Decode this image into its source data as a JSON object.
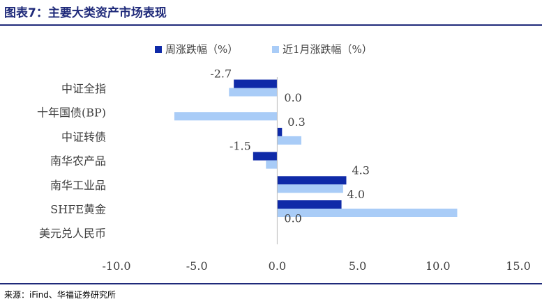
{
  "header": {
    "title": "图表7：主要大类资产市场表现"
  },
  "footer": {
    "source": "来源：iFind、华福证券研究所"
  },
  "colors": {
    "title": "#1f2a7a",
    "rule": "#1f2a7a",
    "weekly": "#0f2aa8",
    "recent_month": "#a9ccf7",
    "text": "#404040"
  },
  "chart_data": {
    "type": "bar",
    "orientation": "horizontal",
    "categories": [
      "中证全指",
      "十年国债(BP)",
      "中证转债",
      "南华农产品",
      "南华工业品",
      "SHFE黄金",
      "美元兑人民币"
    ],
    "series": [
      {
        "name": "周涨跌幅（%）",
        "values": [
          -2.7,
          0.0,
          0.3,
          -1.5,
          4.3,
          4.0,
          0.0
        ],
        "data_labels": [
          "-2.7",
          "0.0",
          "0.3",
          "-1.5",
          "4.3",
          "4.0",
          "0.0"
        ]
      },
      {
        "name": "近1月涨跌幅（%）",
        "values": [
          -3.0,
          -6.4,
          1.5,
          -0.7,
          4.1,
          11.2,
          0.0
        ]
      }
    ],
    "xlim": [
      -10.0,
      15.0
    ],
    "xticks": [
      "-10.0",
      "-5.0",
      "0.0",
      "5.0",
      "10.0",
      "15.0"
    ],
    "xtick_values": [
      -10,
      -5,
      0,
      5,
      10,
      15
    ],
    "legend_position": "top",
    "grid": false
  }
}
